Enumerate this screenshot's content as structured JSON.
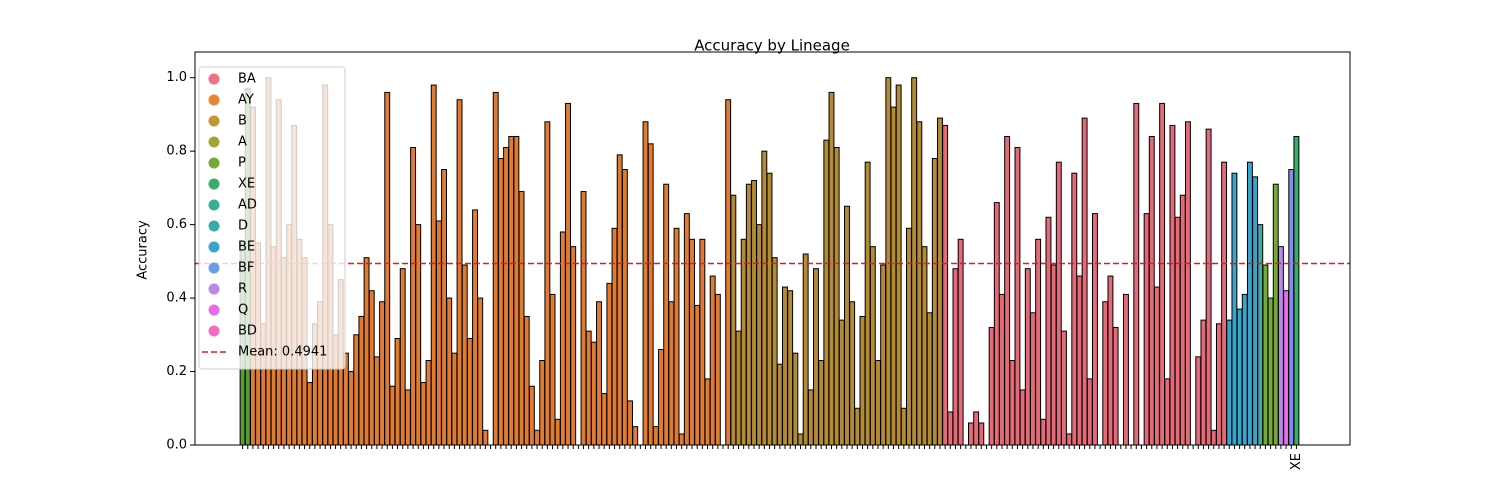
{
  "chart_data": {
    "type": "bar",
    "title": "Accuracy by Lineage",
    "ylabel": "Accuracy",
    "ylim": [
      0,
      1.07
    ],
    "yticks": [
      {
        "value": 0,
        "label": "0.0"
      },
      {
        "value": 0.2,
        "label": "0.2"
      },
      {
        "value": 0.4,
        "label": "0.4"
      },
      {
        "value": 0.6,
        "label": "0.6"
      },
      {
        "value": 0.8,
        "label": "0.8"
      },
      {
        "value": 1,
        "label": "1.0"
      }
    ],
    "mean": {
      "value": 0.4941,
      "label": "Mean: 0.4941",
      "color": "#e31a1c"
    },
    "legend": [
      {
        "name": "BA",
        "color": "#f0717f"
      },
      {
        "name": "AY",
        "color": "#ec8436"
      },
      {
        "name": "B",
        "color": "#c3963a"
      },
      {
        "name": "A",
        "color": "#a4a23a"
      },
      {
        "name": "P",
        "color": "#78a83a"
      },
      {
        "name": "XE",
        "color": "#3aae66"
      },
      {
        "name": "AD",
        "color": "#38ae94"
      },
      {
        "name": "D",
        "color": "#39aaaa"
      },
      {
        "name": "BE",
        "color": "#3ba4cc"
      },
      {
        "name": "BF",
        "color": "#6b9ee8"
      },
      {
        "name": "R",
        "color": "#b68ae8"
      },
      {
        "name": "Q",
        "color": "#ec6ae6"
      },
      {
        "name": "BD",
        "color": "#f36ebe"
      }
    ],
    "series": [
      {
        "color": "#5a9a3a",
        "values": [
          0.55,
          0.97
        ]
      },
      {
        "color": "#e07b34",
        "values": [
          0.92,
          0.55,
          0.33,
          1.0,
          0.54,
          0.94,
          0.51,
          0.6,
          0.87,
          0.56,
          0.51,
          0.17,
          0.33,
          0.39,
          0.98,
          0.6,
          0.3,
          0.45,
          0.25,
          0.2,
          0.3,
          0.35,
          0.51,
          0.42,
          0.24,
          0.39,
          0.96,
          0.16,
          0.29,
          0.48,
          0.15,
          0.81,
          0.6,
          0.17,
          0.23,
          0.98,
          0.61,
          0.75,
          0.4,
          0.25,
          0.94,
          0.49,
          0.29,
          0.64,
          0.4,
          0.04,
          0,
          0.96,
          0.78,
          0.81,
          0.84,
          0.84,
          0.69,
          0.35,
          0.16,
          0.04,
          0.23,
          0.88,
          0.41,
          0.07,
          0.58,
          0.93,
          0.54,
          0,
          0.69,
          0.31,
          0.28,
          0.39,
          0.14,
          0.44,
          0.59,
          0.79,
          0.75,
          0.12,
          0.05,
          0,
          0.88,
          0.82,
          0.05,
          0.26,
          0.71,
          0.39,
          0.59,
          0.03,
          0.63,
          0.56,
          0.38,
          0.56,
          0.18,
          0.46,
          0.41,
          0,
          0.94
        ]
      },
      {
        "color": "#b38a36",
        "values": [
          0.68,
          0.31,
          0.56,
          0.71,
          0.72,
          0.6,
          0.8,
          0.74,
          0.51,
          0.22,
          0.43,
          0.42,
          0.25,
          0.03,
          0.52,
          0.15,
          0.48,
          0.23,
          0.83,
          0.96,
          0.81,
          0.34,
          0.65,
          0.39,
          0.1,
          0.35,
          0.77,
          0.54,
          0.23,
          0.49,
          1.0,
          0.92,
          0.98,
          0.1,
          0.59,
          1.0,
          0.88,
          0.54,
          0.36,
          0.78,
          0.89
        ]
      },
      {
        "color": "#e46a78",
        "values": [
          0.87,
          0.09,
          0.48,
          0.56,
          0,
          0.06,
          0.09,
          0.06,
          0,
          0.32,
          0.66,
          0.41,
          0.84,
          0.23,
          0.81,
          0.15,
          0.48,
          0.36,
          0.56,
          0.07,
          0.62,
          0.49,
          0.77,
          0.31,
          0.03,
          0.74,
          0.46,
          0.89,
          0.18,
          0.63,
          0,
          0.39,
          0.46,
          0.32,
          0,
          0.41,
          0,
          0.93,
          0,
          0.63,
          0.84,
          0.43,
          0.93,
          0.18,
          0.87,
          0.62,
          0.68,
          0.88,
          0,
          0.24,
          0.34,
          0.86,
          0.04,
          0.33,
          0.77
        ]
      },
      {
        "color": "#3ba4cc",
        "values": [
          0.34,
          0.74,
          0.37,
          0.41,
          0.77,
          0.73
        ]
      },
      {
        "color": "#4aa89a",
        "values": [
          0.6
        ]
      },
      {
        "color": "#78a83a",
        "values": [
          0.49,
          0.4,
          0.71
        ]
      },
      {
        "color": "#b68ae8",
        "values": [
          0.54
        ]
      },
      {
        "color": "#ec6ae6",
        "values": [
          0.42
        ]
      },
      {
        "color": "#8a8ae8",
        "values": [
          0.75
        ]
      },
      {
        "color": "#3aae66",
        "categories": [
          "XE"
        ],
        "values": [
          0.84
        ]
      }
    ]
  }
}
